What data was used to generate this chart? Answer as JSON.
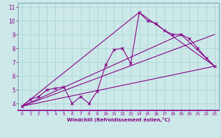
{
  "xlabel": "Windchill (Refroidissement éolien,°C)",
  "bg_color": "#cce8e8",
  "line_color": "#880088",
  "xlim": [
    -0.5,
    23.5
  ],
  "ylim": [
    3.5,
    11.3
  ],
  "xticks": [
    0,
    1,
    2,
    3,
    4,
    5,
    6,
    7,
    8,
    9,
    10,
    11,
    12,
    13,
    14,
    15,
    16,
    17,
    18,
    19,
    20,
    21,
    22,
    23
  ],
  "yticks": [
    4,
    5,
    6,
    7,
    8,
    9,
    10,
    11
  ],
  "line1_x": [
    0,
    1,
    2,
    3,
    4,
    5,
    6,
    7,
    8,
    9,
    10,
    11,
    12,
    13,
    14,
    15,
    16,
    17,
    18,
    19,
    20,
    21,
    22,
    23
  ],
  "line1_y": [
    3.8,
    4.3,
    4.5,
    5.0,
    5.1,
    5.2,
    4.0,
    4.5,
    4.0,
    4.9,
    6.8,
    7.9,
    8.0,
    6.9,
    10.6,
    10.0,
    9.8,
    9.3,
    9.0,
    9.0,
    8.7,
    8.0,
    7.3,
    6.7
  ],
  "line2_x": [
    0,
    23
  ],
  "line2_y": [
    3.8,
    6.7
  ],
  "line3_x": [
    0,
    14,
    23
  ],
  "line3_y": [
    3.8,
    10.6,
    6.7
  ],
  "line4_x": [
    0,
    19,
    23
  ],
  "line4_y": [
    3.8,
    9.0,
    6.7
  ],
  "line5_x": [
    0,
    23
  ],
  "line5_y": [
    3.8,
    9.0
  ]
}
